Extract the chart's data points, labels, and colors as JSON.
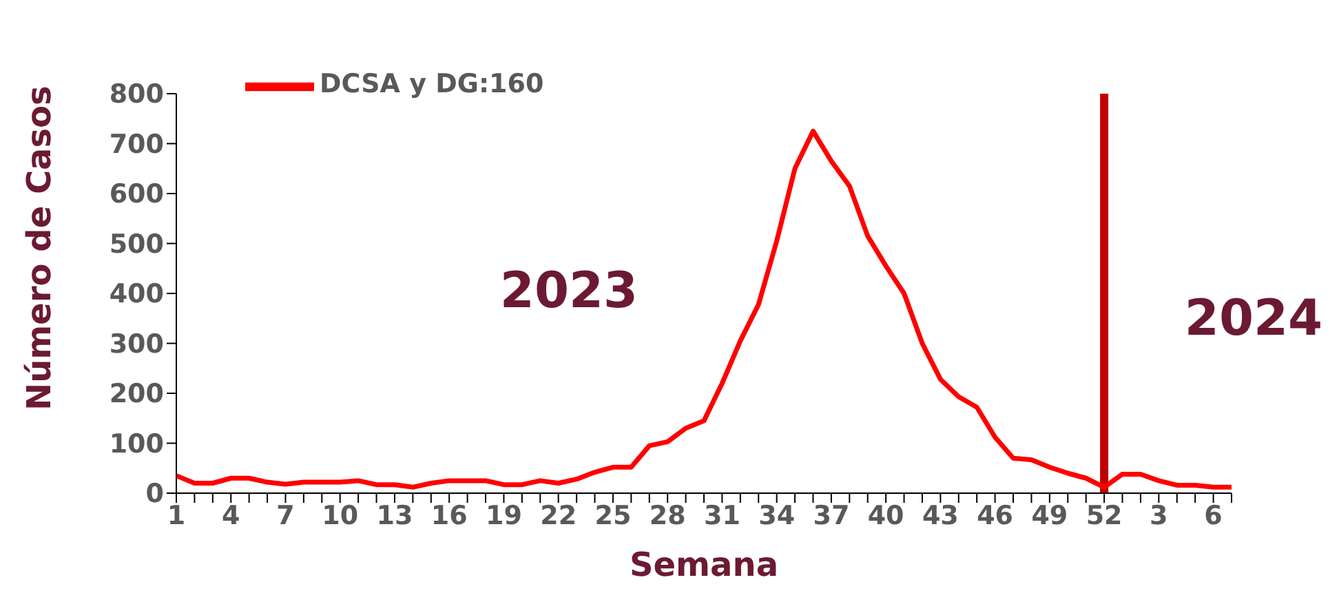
{
  "chart_data": {
    "type": "line",
    "xlabel": "Semana",
    "ylabel": "Número de Casos",
    "categories": [
      "1",
      null,
      null,
      "4",
      null,
      null,
      "7",
      null,
      null,
      "10",
      null,
      null,
      "13",
      null,
      null,
      "16",
      null,
      null,
      "19",
      null,
      null,
      "22",
      null,
      null,
      "25",
      null,
      null,
      "28",
      null,
      null,
      "31",
      null,
      null,
      "34",
      null,
      null,
      "37",
      null,
      null,
      "40",
      null,
      null,
      "43",
      null,
      null,
      "46",
      null,
      null,
      "49",
      null,
      null,
      "52",
      null,
      null,
      "3",
      null,
      null,
      "6",
      null
    ],
    "series": [
      {
        "name": "DCSA y DG:160",
        "color": "#ff0000",
        "values": [
          35,
          20,
          20,
          30,
          30,
          22,
          18,
          22,
          22,
          22,
          25,
          17,
          17,
          12,
          20,
          25,
          25,
          25,
          17,
          17,
          25,
          20,
          28,
          42,
          52,
          52,
          95,
          103,
          130,
          145,
          220,
          305,
          378,
          505,
          650,
          725,
          665,
          615,
          515,
          455,
          400,
          300,
          228,
          193,
          172,
          112,
          70,
          67,
          52,
          40,
          30,
          12,
          38,
          38,
          25,
          16,
          16,
          12,
          12
        ]
      }
    ],
    "ylim": [
      0,
      800
    ],
    "yticks": [
      0,
      100,
      200,
      300,
      400,
      500,
      600,
      700,
      800
    ],
    "grid": false,
    "legend": "top left",
    "marker": "none",
    "line_style": "solid",
    "ref_lines": [
      {
        "axis": "x",
        "value": "52",
        "color": "#c00000"
      }
    ],
    "annotations": [
      "2023",
      "2024"
    ]
  }
}
